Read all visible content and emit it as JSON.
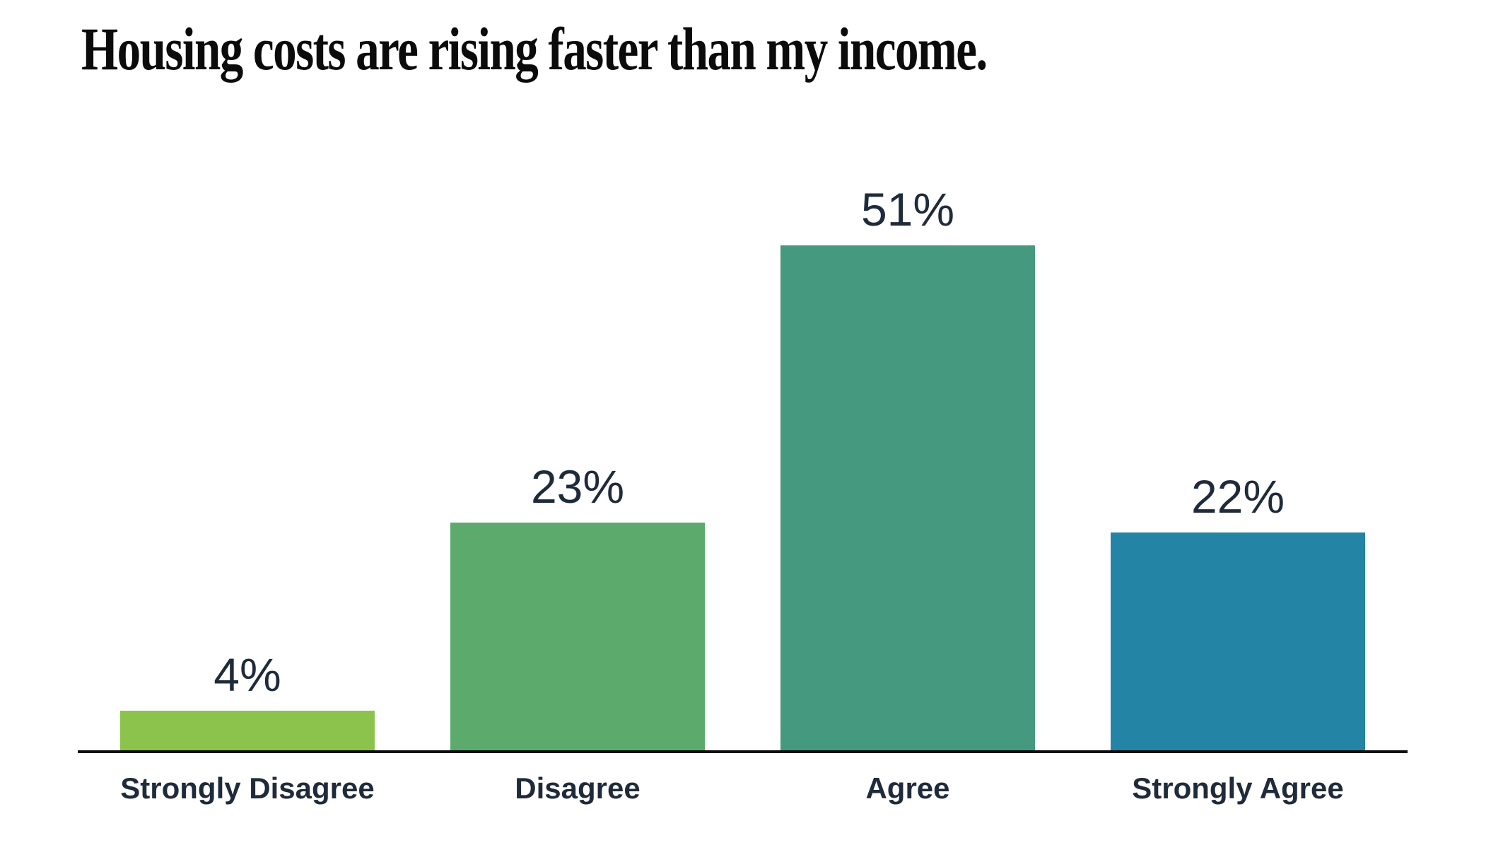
{
  "chart_data": {
    "type": "bar",
    "title": "Housing costs are rising faster than my income.",
    "categories": [
      "Strongly Disagree",
      "Disagree",
      "Agree",
      "Strongly Agree"
    ],
    "values": [
      4,
      23,
      51,
      22
    ],
    "value_labels": [
      "4%",
      "23%",
      "51%",
      "22%"
    ],
    "colors": [
      "#8CC34D",
      "#5CAB6C",
      "#45997F",
      "#2484A6"
    ],
    "xlabel": "",
    "ylabel": "",
    "ylim": [
      0,
      76
    ],
    "grid": false,
    "legend": "none",
    "background_color": "#FFFFFF",
    "axis_line_color": "#0D0D0D",
    "label_color": "#1F2A3A",
    "title_color": "#0B0B0B"
  }
}
